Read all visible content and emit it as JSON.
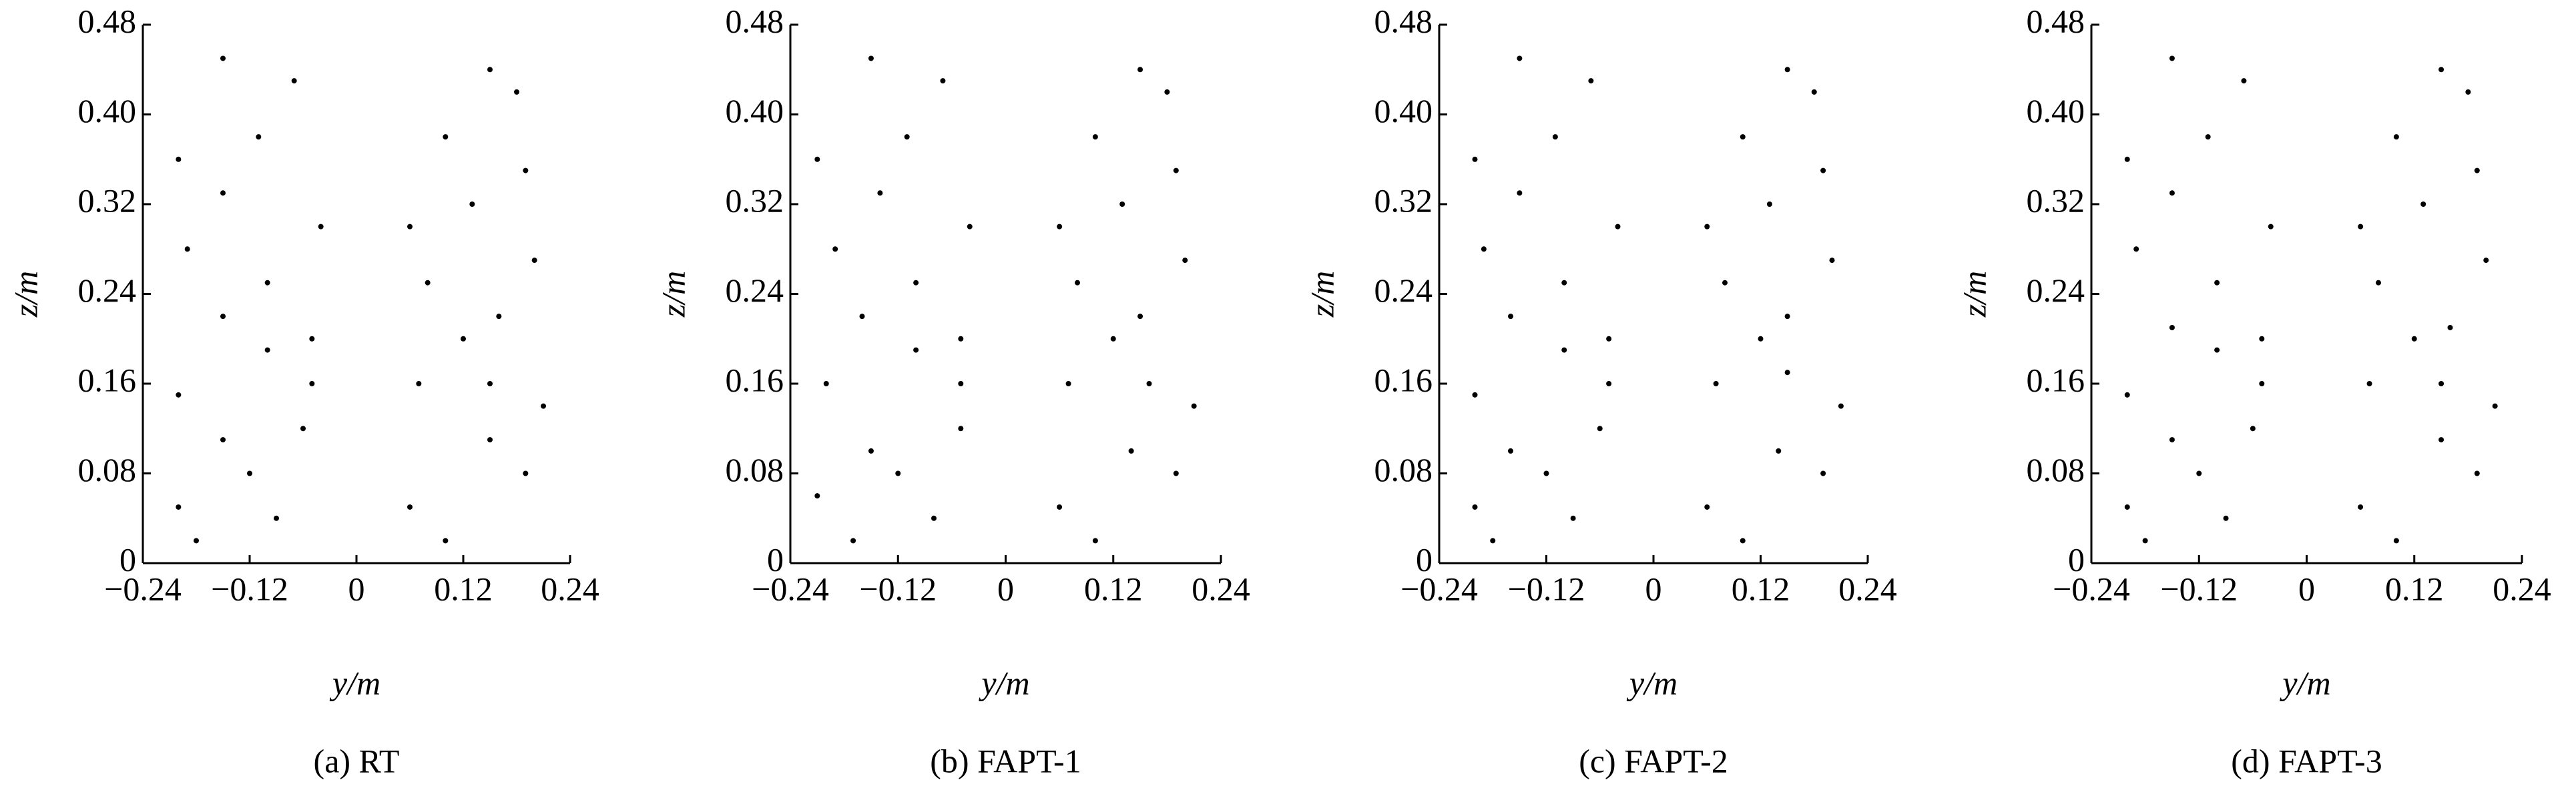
{
  "chart_data": [
    {
      "type": "scatter",
      "caption": "(a) RT",
      "xlabel": "y/m",
      "ylabel": "z/m",
      "color": "#000000",
      "xlim": [
        -0.24,
        0.24
      ],
      "ylim": [
        0,
        0.48
      ],
      "xticks": [
        {
          "value": -0.24,
          "label": "−0.24"
        },
        {
          "value": -0.12,
          "label": "−0.12"
        },
        0,
        0.12,
        0.24
      ],
      "yticks": [
        0,
        0.08,
        0.16,
        0.24,
        0.32,
        {
          "value": 0.4,
          "label": "0.40"
        },
        0.48
      ],
      "x": [
        -0.2,
        -0.18,
        -0.15,
        -0.12,
        -0.09,
        -0.06,
        -0.2,
        -0.15,
        -0.1,
        -0.05,
        -0.19,
        -0.15,
        -0.11,
        -0.07,
        -0.04,
        -0.2,
        -0.15,
        -0.1,
        -0.05,
        0.06,
        0.1,
        0.15,
        0.19,
        0.21,
        0.07,
        0.12,
        0.16,
        0.2,
        0.06,
        0.1,
        0.15,
        0.19,
        0.08,
        0.13,
        0.18,
        0.15
      ],
      "y": [
        0.05,
        0.02,
        0.11,
        0.08,
        0.04,
        0.12,
        0.15,
        0.22,
        0.19,
        0.2,
        0.28,
        0.33,
        0.38,
        0.43,
        0.3,
        0.36,
        0.45,
        0.25,
        0.16,
        0.05,
        0.02,
        0.11,
        0.08,
        0.14,
        0.16,
        0.2,
        0.22,
        0.27,
        0.3,
        0.38,
        0.44,
        0.35,
        0.25,
        0.32,
        0.42,
        0.16
      ]
    },
    {
      "type": "scatter",
      "caption": "(b) FAPT-1",
      "xlabel": "y/m",
      "ylabel": "z/m",
      "color": "#000000",
      "xlim": [
        -0.24,
        0.24
      ],
      "ylim": [
        0,
        0.48
      ],
      "xticks": [
        {
          "value": -0.24,
          "label": "−0.24"
        },
        {
          "value": -0.12,
          "label": "−0.12"
        },
        0,
        0.12,
        0.24
      ],
      "yticks": [
        0,
        0.08,
        0.16,
        0.24,
        0.32,
        {
          "value": 0.4,
          "label": "0.40"
        },
        0.48
      ],
      "x": [
        -0.21,
        -0.17,
        -0.15,
        -0.12,
        -0.08,
        -0.05,
        -0.2,
        -0.16,
        -0.1,
        -0.05,
        -0.19,
        -0.14,
        -0.11,
        -0.07,
        -0.04,
        -0.21,
        -0.15,
        -0.1,
        -0.05,
        0.06,
        0.1,
        0.14,
        0.19,
        0.21,
        0.07,
        0.12,
        0.15,
        0.2,
        0.06,
        0.1,
        0.15,
        0.19,
        0.08,
        0.13,
        0.18,
        0.16
      ],
      "y": [
        0.06,
        0.02,
        0.1,
        0.08,
        0.04,
        0.12,
        0.16,
        0.22,
        0.19,
        0.2,
        0.28,
        0.33,
        0.38,
        0.43,
        0.3,
        0.36,
        0.45,
        0.25,
        0.16,
        0.05,
        0.02,
        0.1,
        0.08,
        0.14,
        0.16,
        0.2,
        0.22,
        0.27,
        0.3,
        0.38,
        0.44,
        0.35,
        0.25,
        0.32,
        0.42,
        0.16
      ]
    },
    {
      "type": "scatter",
      "caption": "(c) FAPT-2",
      "xlabel": "y/m",
      "ylabel": "z/m",
      "color": "#000000",
      "xlim": [
        -0.24,
        0.24
      ],
      "ylim": [
        0,
        0.48
      ],
      "xticks": [
        {
          "value": -0.24,
          "label": "−0.24"
        },
        {
          "value": -0.12,
          "label": "−0.12"
        },
        0,
        0.12,
        0.24
      ],
      "yticks": [
        0,
        0.08,
        0.16,
        0.24,
        0.32,
        {
          "value": 0.4,
          "label": "0.40"
        },
        0.48
      ],
      "x": [
        -0.2,
        -0.18,
        -0.16,
        -0.12,
        -0.09,
        -0.06,
        -0.2,
        -0.16,
        -0.1,
        -0.05,
        -0.19,
        -0.15,
        -0.11,
        -0.07,
        -0.04,
        -0.2,
        -0.15,
        -0.1,
        -0.05,
        0.06,
        0.1,
        0.14,
        0.19,
        0.21,
        0.07,
        0.12,
        0.15,
        0.2,
        0.06,
        0.1,
        0.15,
        0.19,
        0.08,
        0.13,
        0.18,
        0.15
      ],
      "y": [
        0.05,
        0.02,
        0.1,
        0.08,
        0.04,
        0.12,
        0.15,
        0.22,
        0.19,
        0.2,
        0.28,
        0.33,
        0.38,
        0.43,
        0.3,
        0.36,
        0.45,
        0.25,
        0.16,
        0.05,
        0.02,
        0.1,
        0.08,
        0.14,
        0.16,
        0.2,
        0.22,
        0.27,
        0.3,
        0.38,
        0.44,
        0.35,
        0.25,
        0.32,
        0.42,
        0.17
      ]
    },
    {
      "type": "scatter",
      "caption": "(d) FAPT-3",
      "xlabel": "y/m",
      "ylabel": "z/m",
      "color": "#000000",
      "xlim": [
        -0.24,
        0.24
      ],
      "ylim": [
        0,
        0.48
      ],
      "xticks": [
        {
          "value": -0.24,
          "label": "−0.24"
        },
        {
          "value": -0.12,
          "label": "−0.12"
        },
        0,
        0.12,
        0.24
      ],
      "yticks": [
        0,
        0.08,
        0.16,
        0.24,
        0.32,
        {
          "value": 0.4,
          "label": "0.40"
        },
        0.48
      ],
      "x": [
        -0.2,
        -0.18,
        -0.15,
        -0.12,
        -0.09,
        -0.06,
        -0.2,
        -0.15,
        -0.1,
        -0.05,
        -0.19,
        -0.15,
        -0.11,
        -0.07,
        -0.04,
        -0.2,
        -0.15,
        -0.1,
        -0.05,
        0.06,
        0.1,
        0.15,
        0.19,
        0.21,
        0.07,
        0.12,
        0.16,
        0.2,
        0.06,
        0.1,
        0.15,
        0.19,
        0.08,
        0.13,
        0.18,
        0.15
      ],
      "y": [
        0.05,
        0.02,
        0.11,
        0.08,
        0.04,
        0.12,
        0.15,
        0.21,
        0.19,
        0.2,
        0.28,
        0.33,
        0.38,
        0.43,
        0.3,
        0.36,
        0.45,
        0.25,
        0.16,
        0.05,
        0.02,
        0.11,
        0.08,
        0.14,
        0.16,
        0.2,
        0.21,
        0.27,
        0.3,
        0.38,
        0.44,
        0.35,
        0.25,
        0.32,
        0.42,
        0.16
      ]
    }
  ]
}
